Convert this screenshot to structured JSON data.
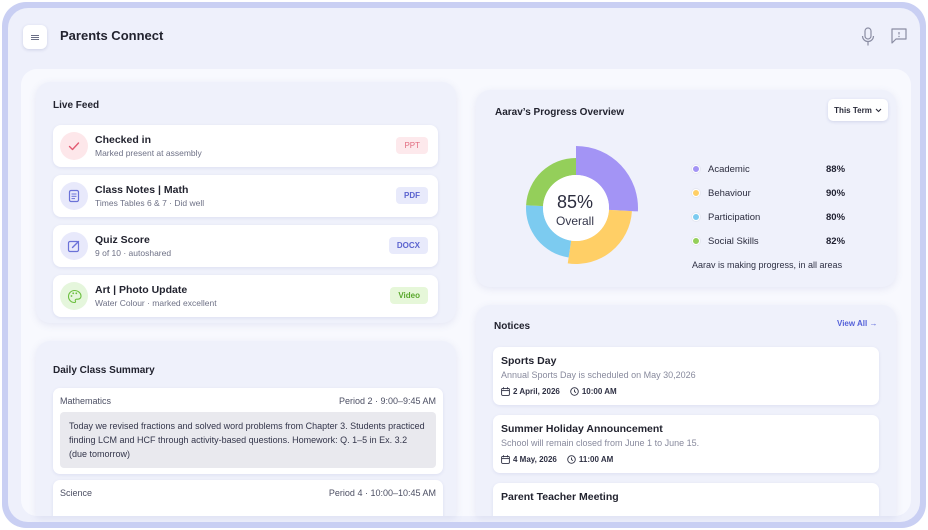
{
  "header": {
    "title": "Parents Connect",
    "menu_icon": "menu-icon",
    "mic_icon": "microphone-icon",
    "chat_icon": "chat-icon"
  },
  "live_feed": {
    "title": "Live Feed",
    "items": [
      {
        "title": "Checked in",
        "subtitle": "Marked present at assembly",
        "badge": "PPT",
        "icon": "checkmark-icon",
        "icon_bg": "#fde7ea",
        "icon_color": "#e25b72",
        "badge_bg": "#fde9ec",
        "badge_color": "#e26d80"
      },
      {
        "title": "Class Notes | Math",
        "subtitle": "Times Tables 6 & 7  · Did well",
        "badge": "PDF",
        "icon": "document-icon",
        "icon_bg": "#e8e9fb",
        "icon_color": "#6b72d8",
        "badge_bg": "#e8eafb",
        "badge_color": "#5b63cf"
      },
      {
        "title": "Quiz Score",
        "subtitle": "9 of 10  · autoshared",
        "badge": "DOCX",
        "icon": "edit-icon",
        "icon_bg": "#e8e9fb",
        "icon_color": "#6b72d8",
        "badge_bg": "#e8eafb",
        "badge_color": "#5b63cf"
      },
      {
        "title": "Art | Photo Update",
        "subtitle": "Water Colour  · marked excellent",
        "badge": "Video",
        "icon": "palette-icon",
        "icon_bg": "#e5f6dc",
        "icon_color": "#6bbf3e",
        "badge_bg": "#e6f7d9",
        "badge_color": "#5aa82d"
      }
    ]
  },
  "daily_summary": {
    "title": "Daily Class Summary",
    "classes": [
      {
        "subject": "Mathematics",
        "period": "Period 2 · 9:00–9:45 AM",
        "note": "Today we revised fractions and solved word problems from Chapter 3. Students practiced finding LCM and HCF through activity-based questions. Homework: Q. 1–5 in Ex. 3.2 (due tomorrow)"
      },
      {
        "subject": "Science",
        "period": "Period 4 · 10:00–10:45 AM"
      }
    ]
  },
  "progress": {
    "title": "Aarav’s Progress Overview",
    "term_select": "This Term",
    "overall_value": "85%",
    "overall_label": "Overall",
    "note": "Aarav is making progress, in all areas",
    "colors": {
      "academic": "#a394f5",
      "behaviour": "#ffcf66",
      "participation": "#7ccbf0",
      "social": "#94cf5a"
    }
  },
  "chart_data": {
    "type": "pie",
    "categories": [
      "Academic",
      "Behaviour",
      "Participation",
      "Social Skills"
    ],
    "values": [
      88,
      90,
      80,
      82
    ],
    "labels": [
      "88%",
      "90%",
      "80%",
      "82%"
    ],
    "center_text": "85%",
    "center_subtext": "Overall",
    "legend_position": "right"
  },
  "notices": {
    "title": "Notices",
    "view_all": "View All →",
    "items": [
      {
        "title": "Sports Day",
        "description": "Annual Sports Day is scheduled on May 30,2026",
        "date": "2 April, 2026",
        "time": "10:00 AM"
      },
      {
        "title": "Summer Holiday Announcement",
        "description": "School will remain closed from June 1 to June 15.",
        "date": "4 May, 2026",
        "time": "11:00 AM"
      },
      {
        "title": "Parent Teacher Meeting"
      }
    ]
  }
}
